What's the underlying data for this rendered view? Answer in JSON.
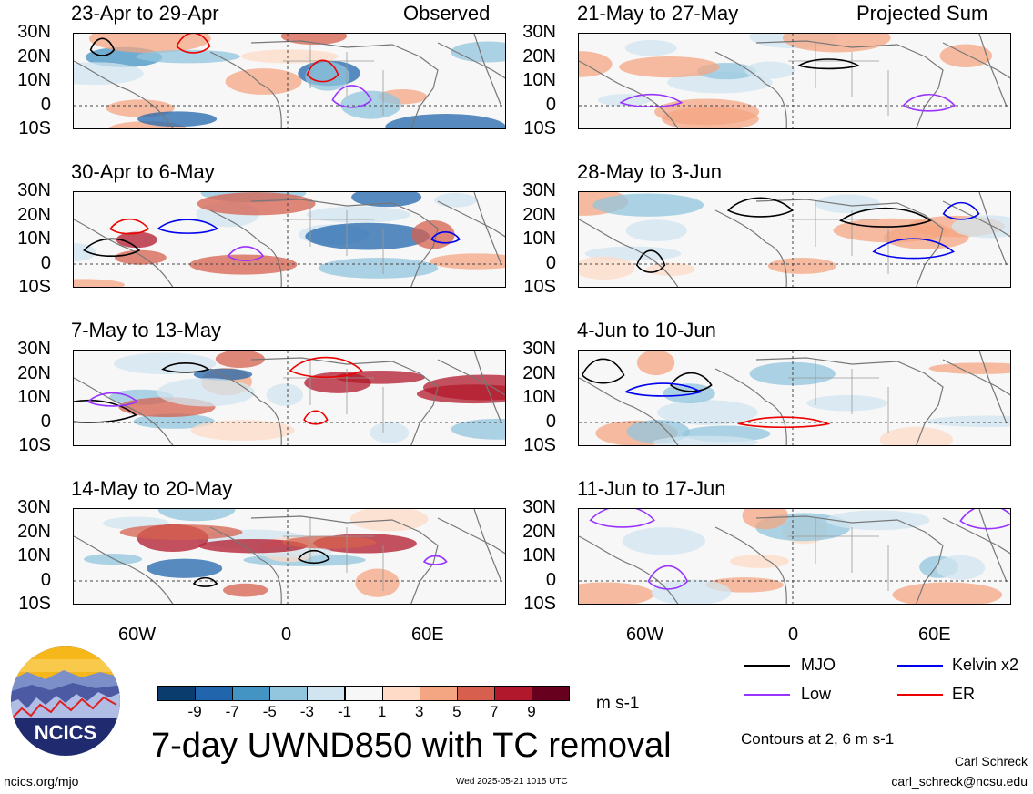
{
  "observed_label": "Observed",
  "projected_label": "Projected Sum",
  "left_panels": [
    {
      "title": "23-Apr to 29-Apr"
    },
    {
      "title": "30-Apr to 6-May"
    },
    {
      "title": "7-May to 13-May"
    },
    {
      "title": "14-May to 20-May"
    }
  ],
  "right_panels": [
    {
      "title": "21-May to 27-May"
    },
    {
      "title": "28-May to 3-Jun"
    },
    {
      "title": "4-Jun to 10-Jun"
    },
    {
      "title": "11-Jun to 17-Jun"
    }
  ],
  "lat_labels": [
    "30N",
    "20N",
    "10N",
    "0",
    "10S"
  ],
  "lon_labels": [
    "60W",
    "0",
    "60E"
  ],
  "colorbar": {
    "labels": [
      "-9",
      "-7",
      "-5",
      "-3",
      "-1",
      "1",
      "3",
      "5",
      "7",
      "9"
    ],
    "colors": [
      "#0a3d6e",
      "#2166ac",
      "#4393c3",
      "#92c5de",
      "#d1e5f0",
      "#f7f7f7",
      "#fddbc7",
      "#f4a582",
      "#d6604d",
      "#b2182b",
      "#67001f"
    ],
    "units": "m s-1"
  },
  "legend": {
    "mjo": "MJO",
    "kelvin": "Kelvin x2",
    "low": "Low",
    "er": "ER",
    "colors": {
      "mjo": "#000000",
      "kelvin": "#0000ee",
      "low": "#9933ff",
      "er": "#ee0000"
    }
  },
  "contours_note": "Contours at 2, 6 m s-1",
  "main_title": "7-day UWND850 with TC removal",
  "logo_text": "NCICS",
  "footer": {
    "url": "ncics.org/mjo",
    "timestamp": "Wed 2025-05-21 1015 UTC",
    "author": "Carl Schreck",
    "email": "carl_schreck@ncsu.edu"
  }
}
